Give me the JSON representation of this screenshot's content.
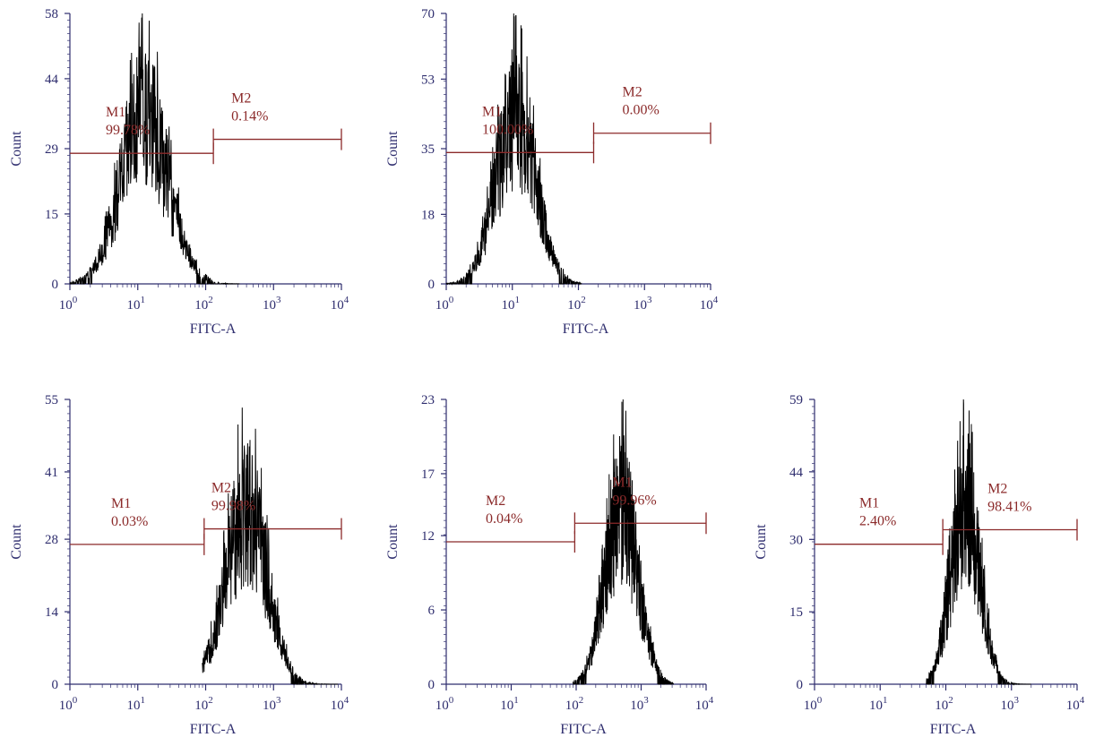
{
  "colors": {
    "axis": "#2e2d6e",
    "gate": "#8b2a2a",
    "histogram": "#000000"
  },
  "chart_data": [
    {
      "type": "histogram",
      "xlabel": "FITC-A",
      "ylabel": "Count",
      "x_scale": "log",
      "xlim": [
        1,
        10000
      ],
      "x_ticks": [
        "10^0",
        "10^1",
        "10^2",
        "10^3",
        "10^4"
      ],
      "y_ticks": [
        "0",
        "15",
        "29",
        "44",
        "58"
      ],
      "ylim": [
        0,
        58
      ],
      "distribution": {
        "log_center": 1.1,
        "log_sd": 0.35,
        "peak": 58,
        "log_min": 0.0,
        "log_max": 2.5
      },
      "gates": [
        {
          "name": "M1",
          "percent": "99.78%",
          "from": 1,
          "to": 130,
          "y": 28
        },
        {
          "name": "M2",
          "percent": "0.14%",
          "from": 130,
          "to": 10000,
          "y": 31
        }
      ]
    },
    {
      "type": "histogram",
      "xlabel": "FITC-A",
      "ylabel": "Count",
      "x_scale": "log",
      "xlim": [
        1,
        10000
      ],
      "x_ticks": [
        "10^0",
        "10^1",
        "10^2",
        "10^3",
        "10^4"
      ],
      "y_ticks": [
        "0",
        "18",
        "35",
        "53",
        "70"
      ],
      "ylim": [
        0,
        70
      ],
      "distribution": {
        "log_center": 1.05,
        "log_sd": 0.3,
        "peak": 70,
        "log_min": 0.0,
        "log_max": 2.05
      },
      "gates": [
        {
          "name": "M1",
          "percent": "100.00%",
          "from": 1,
          "to": 170,
          "y": 34
        },
        {
          "name": "M2",
          "percent": "0.00%",
          "from": 170,
          "to": 10000,
          "y": 39
        }
      ]
    },
    {
      "type": "histogram",
      "xlabel": "FITC-A",
      "ylabel": "Count",
      "x_scale": "log",
      "xlim": [
        1,
        10000
      ],
      "x_ticks": [
        "10^0",
        "10^1",
        "10^2",
        "10^3",
        "10^4"
      ],
      "y_ticks": [
        "0",
        "14",
        "28",
        "41",
        "55"
      ],
      "ylim": [
        0,
        55
      ],
      "distribution": {
        "log_center": 2.6,
        "log_sd": 0.3,
        "peak": 55,
        "log_min": 1.95,
        "log_max": 3.95
      },
      "gates": [
        {
          "name": "M1",
          "percent": "0.03%",
          "from": 1,
          "to": 95,
          "y": 27
        },
        {
          "name": "M2",
          "percent": "99.98%",
          "from": 95,
          "to": 10000,
          "y": 30
        }
      ]
    },
    {
      "type": "histogram",
      "xlabel": "FITC-A",
      "ylabel": "Count",
      "x_scale": "log",
      "xlim": [
        1,
        10000
      ],
      "x_ticks": [
        "10^0",
        "10^1",
        "10^2",
        "10^3",
        "10^4"
      ],
      "y_ticks": [
        "0",
        "6",
        "12",
        "17",
        "23"
      ],
      "ylim": [
        0,
        23
      ],
      "distribution": {
        "log_center": 2.7,
        "log_sd": 0.25,
        "peak": 23,
        "log_min": 1.95,
        "log_max": 3.5
      },
      "gates": [
        {
          "name": "M2",
          "percent": "0.04%",
          "from": 1,
          "to": 95,
          "y": 11.5
        },
        {
          "name": "M1",
          "percent": "99.96%",
          "from": 95,
          "to": 10000,
          "y": 13
        }
      ]
    },
    {
      "type": "histogram",
      "xlabel": "FITC-A",
      "ylabel": "Count",
      "x_scale": "log",
      "xlim": [
        1,
        10000
      ],
      "x_ticks": [
        "10^0",
        "10^1",
        "10^2",
        "10^3",
        "10^4"
      ],
      "y_ticks": [
        "0",
        "15",
        "30",
        "44",
        "59"
      ],
      "ylim": [
        0,
        59
      ],
      "distribution": {
        "log_center": 2.3,
        "log_sd": 0.22,
        "peak": 59,
        "log_min": 1.7,
        "log_max": 3.3
      },
      "gates": [
        {
          "name": "M1",
          "percent": "2.40%",
          "from": 1,
          "to": 90,
          "y": 29
        },
        {
          "name": "M2",
          "percent": "98.41%",
          "from": 90,
          "to": 10000,
          "y": 32
        }
      ]
    }
  ]
}
